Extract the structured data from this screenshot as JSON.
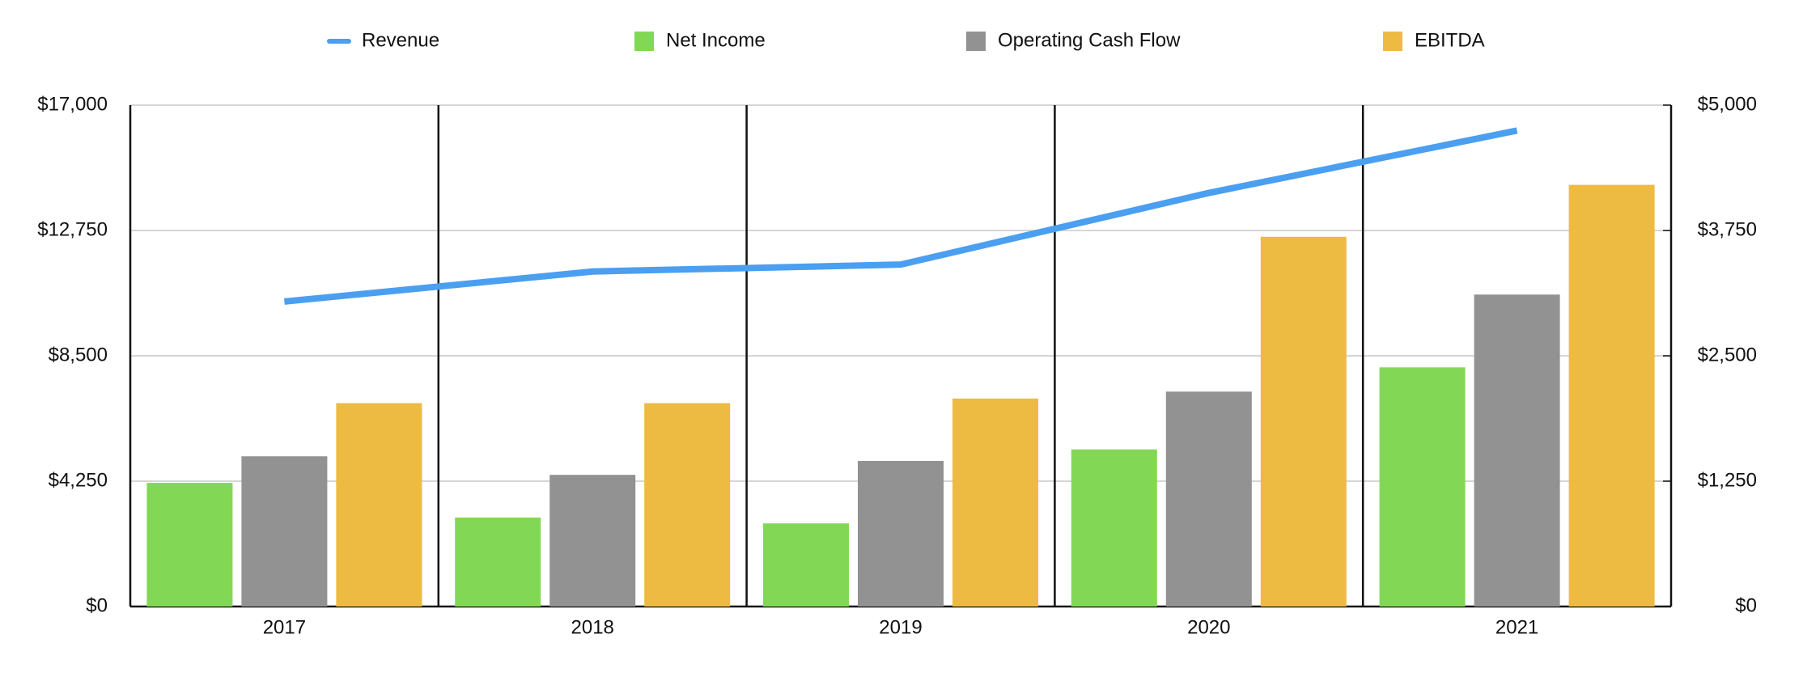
{
  "chart_data": {
    "type": "bar",
    "categories": [
      "2017",
      "2018",
      "2019",
      "2020",
      "2021"
    ],
    "series": [
      {
        "name": "Revenue",
        "type": "line",
        "color": "#4a9ff0",
        "values": [
          10341,
          11359,
          11594,
          14023,
          16138
        ]
      },
      {
        "name": "Net Income",
        "type": "bar",
        "axis": "y2",
        "color": "#82d854",
        "values": [
          1233,
          887,
          829,
          1567,
          2385
        ]
      },
      {
        "name": "Operating Cash Flow",
        "type": "bar",
        "axis": "y2",
        "color": "#929292",
        "values": [
          1498,
          1313,
          1452,
          2143,
          3111
        ]
      },
      {
        "name": "EBITDA",
        "type": "bar",
        "axis": "y2",
        "color": "#edbb42",
        "values": [
          2028,
          2028,
          2074,
          3687,
          4205
        ]
      }
    ],
    "ylim": [
      0,
      17000
    ],
    "yticks": [
      {
        "value": 0,
        "label": "$0"
      },
      {
        "value": 4250,
        "label": "$4,250"
      },
      {
        "value": 8500,
        "label": "$8,500"
      },
      {
        "value": 12750,
        "label": "$12,750"
      },
      {
        "value": 17000,
        "label": "$17,000"
      }
    ],
    "y2lim": [
      0,
      5000
    ],
    "y2ticks": [
      {
        "value": 0,
        "label": "$0"
      },
      {
        "value": 1250,
        "label": "$1,250"
      },
      {
        "value": 2500,
        "label": "$2,500"
      },
      {
        "value": 3750,
        "label": "$3,750"
      },
      {
        "value": 5000,
        "label": "$5,000"
      }
    ],
    "grid": true,
    "legend": "top"
  }
}
